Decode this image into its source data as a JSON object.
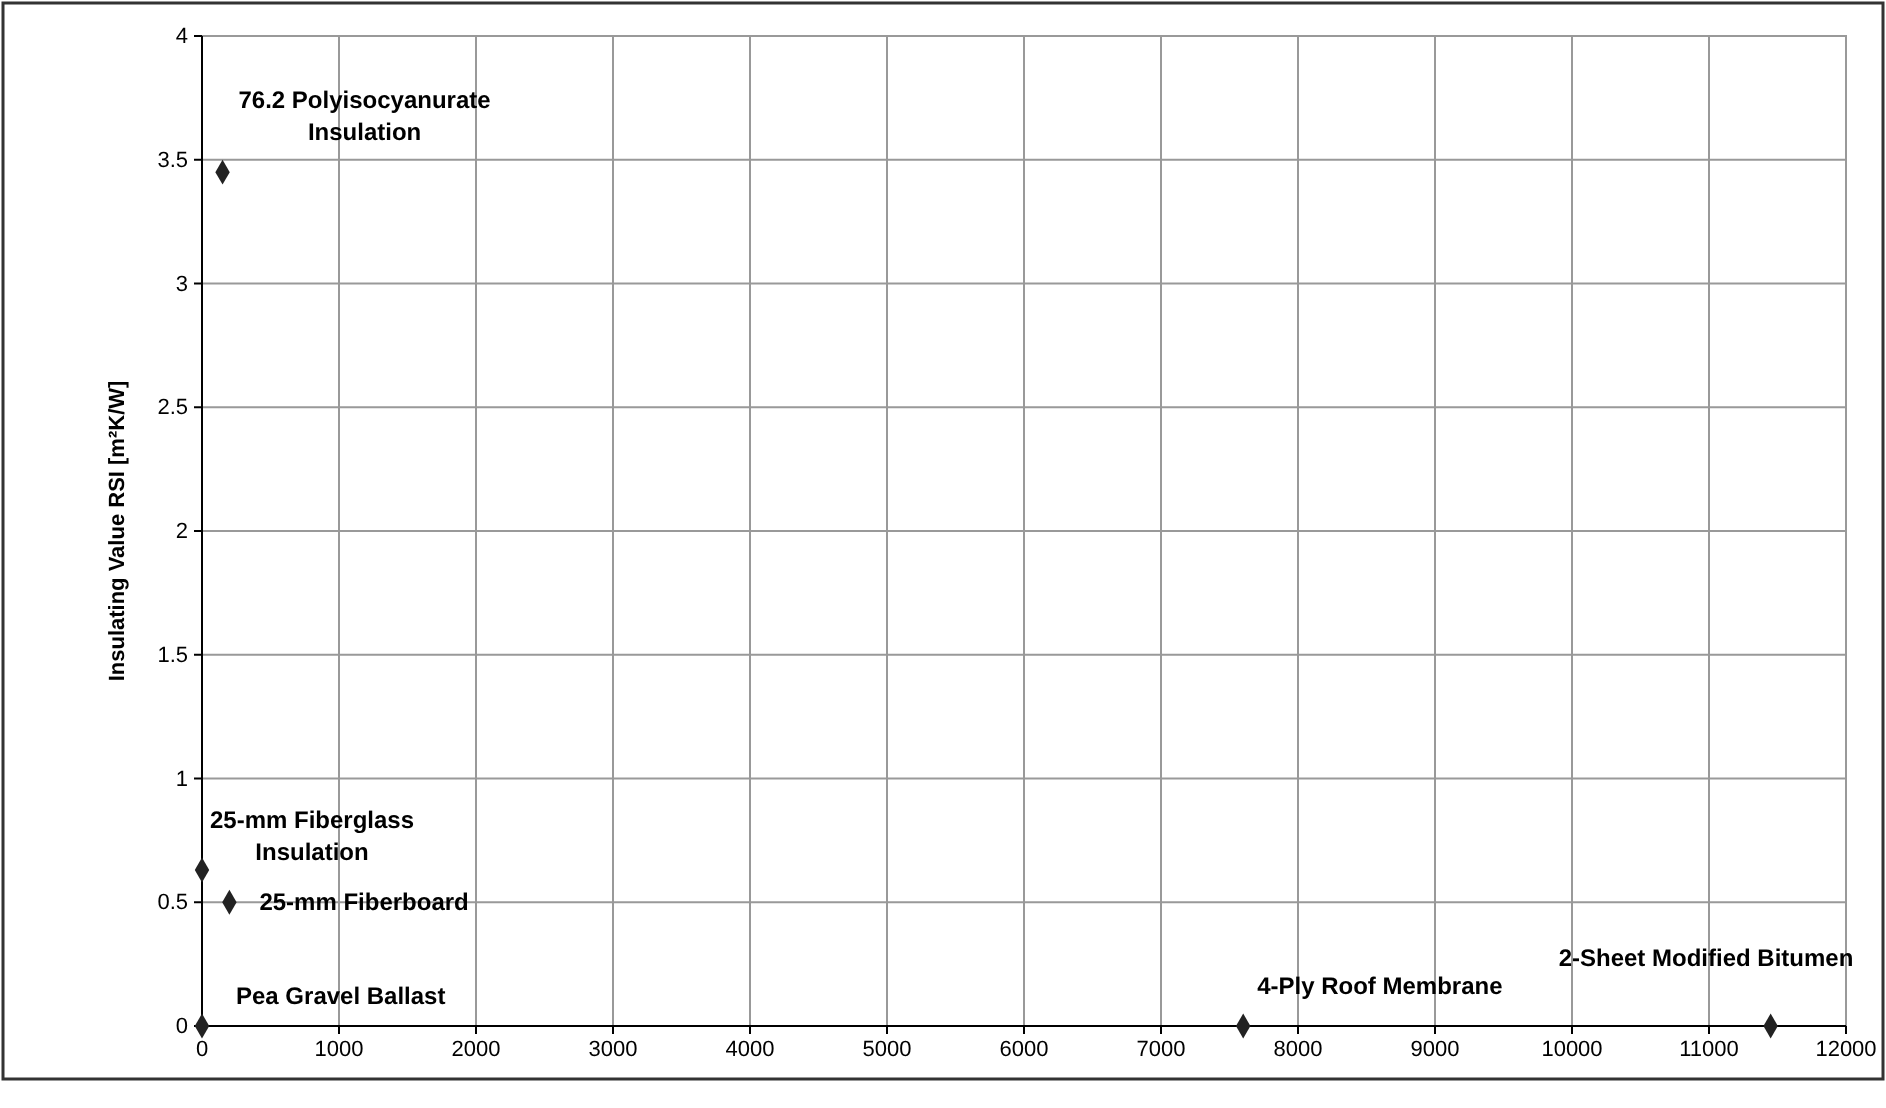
{
  "chart_data": {
    "type": "scatter",
    "ylabel": "Insulating Value RSI [m²K/W]",
    "x": [
      0,
      200,
      150,
      0,
      7600,
      11450
    ],
    "series": [
      {
        "color": "#222222",
        "values": [
          0.63,
          0.5,
          3.45,
          0,
          0,
          0
        ]
      }
    ],
    "xlim": [
      0,
      12000
    ],
    "xticks": [
      0,
      1000,
      2000,
      3000,
      4000,
      5000,
      6000,
      7000,
      8000,
      9000,
      10000,
      11000,
      12000
    ],
    "ylim": [
      0,
      4
    ],
    "yticks": [
      0,
      0.5,
      1,
      1.5,
      2,
      2.5,
      3,
      3.5,
      4
    ],
    "grid": true,
    "marker": "diamond",
    "annotations": [
      {
        "text": "25-mm Fiberglass\nInsulation",
        "x": 0,
        "y": 0.63
      },
      {
        "text": "25-mm Fiberboard",
        "x": 200,
        "y": 0.5
      },
      {
        "text": "76.2 Polyisocyanurate\nInsulation",
        "x": 150,
        "y": 3.45
      },
      {
        "text": "Pea Gravel Ballast",
        "x": 0,
        "y": 0
      },
      {
        "text": "4-Ply Roof Membrane",
        "x": 7600,
        "y": 0
      },
      {
        "text": "2-Sheet Modified Bitumen",
        "x": 11450,
        "y": 0
      }
    ]
  }
}
